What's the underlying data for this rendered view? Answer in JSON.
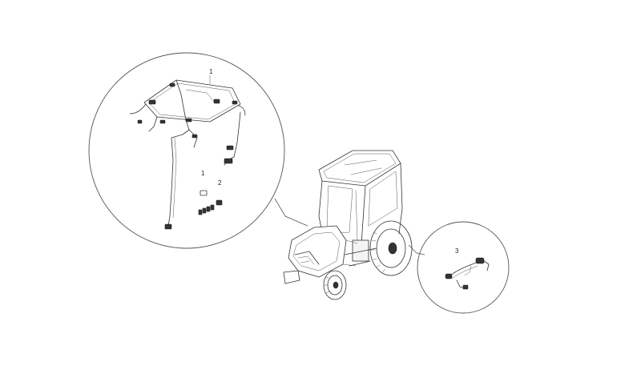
{
  "callouts": {
    "c1_top": "1",
    "c1_mid": "1",
    "c2": "2",
    "c3": "3"
  },
  "colors": {
    "line": "#333333",
    "background": "#ffffff"
  }
}
